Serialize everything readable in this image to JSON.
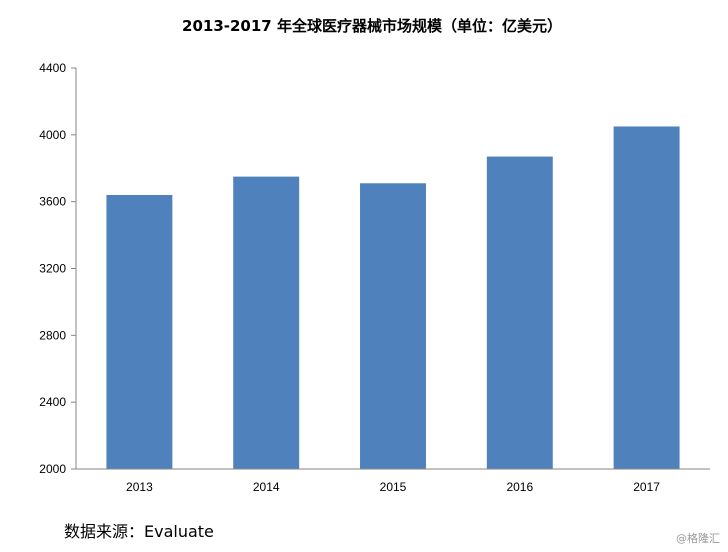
{
  "chart_data": {
    "type": "bar",
    "title": "2013-2017 年全球医疗器械市场规模（单位：亿美元）",
    "categories": [
      "2013",
      "2014",
      "2015",
      "2016",
      "2017"
    ],
    "values": [
      3640,
      3750,
      3710,
      3870,
      4050
    ],
    "ylim": [
      2000,
      4400
    ],
    "yticks": [
      "4400",
      "4000",
      "3600",
      "3200",
      "2800",
      "2400",
      "2000"
    ],
    "bar_color": "#4f81bd",
    "grid": false,
    "legend": "none"
  },
  "source": "数据来源：Evaluate",
  "watermark": "@格隆汇"
}
